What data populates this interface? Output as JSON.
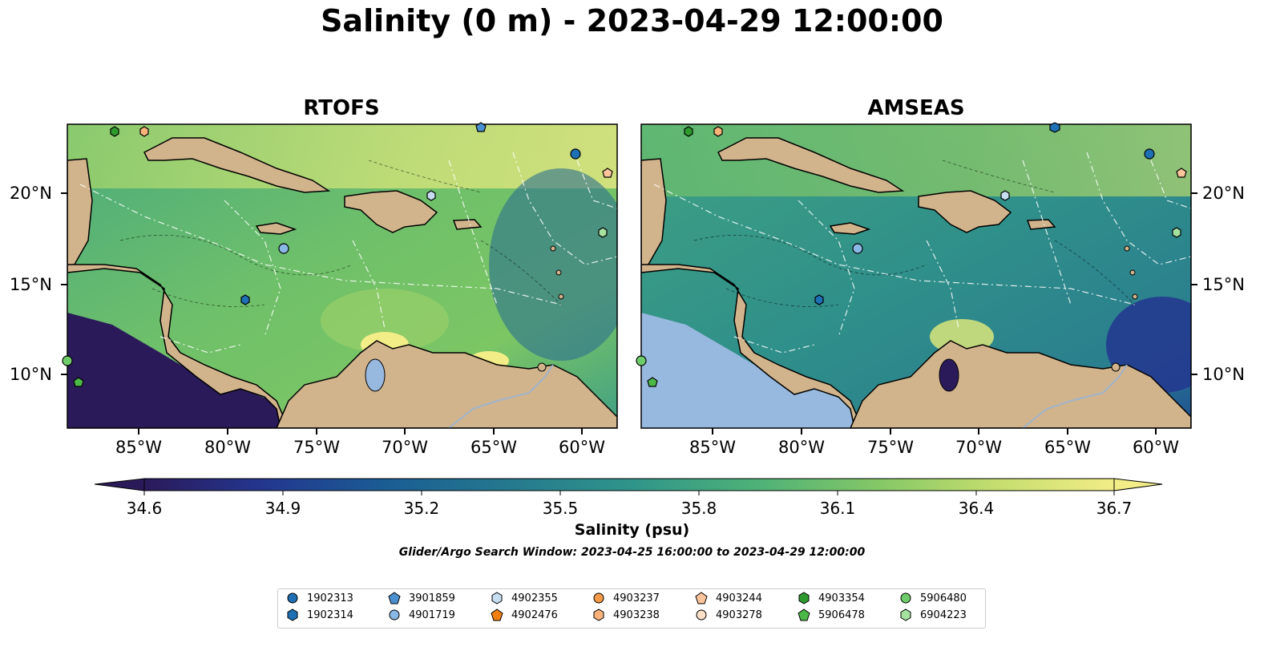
{
  "title": "Salinity (0 m) - 2023-04-29 12:00:00",
  "panels": [
    {
      "title": "RTOFS"
    },
    {
      "title": "AMSEAS"
    }
  ],
  "lat_labels": [
    "20°N",
    "15°N",
    "10°N"
  ],
  "lon_labels": [
    "85°W",
    "80°W",
    "75°W",
    "70°W",
    "65°W",
    "60°W"
  ],
  "colorbar": {
    "label": "Salinity (psu)",
    "ticks": [
      "34.6",
      "34.9",
      "35.2",
      "35.5",
      "35.8",
      "36.1",
      "36.4",
      "36.7"
    ],
    "range": [
      34.6,
      36.7
    ],
    "colormap": [
      "#2b1a5a",
      "#23368f",
      "#1a5d94",
      "#257a8e",
      "#2f948a",
      "#4db178",
      "#86c866",
      "#c6de6f",
      "#f2ed86"
    ]
  },
  "search_window": "Glider/Argo Search Window: 2023-04-25 16:00:00 to 2023-04-29 12:00:00",
  "legend": [
    {
      "id": "1902313",
      "marker": "circle",
      "color": "#1f6fb4"
    },
    {
      "id": "1902314",
      "marker": "hexagon",
      "color": "#1f6fb4"
    },
    {
      "id": "3901859",
      "marker": "pentagon",
      "color": "#4a90d0"
    },
    {
      "id": "4901719",
      "marker": "circle",
      "color": "#8ab8e6"
    },
    {
      "id": "4902355",
      "marker": "hexagon",
      "color": "#c6ddf2"
    },
    {
      "id": "4902476",
      "marker": "pentagon",
      "color": "#f07f12"
    },
    {
      "id": "4903237",
      "marker": "circle",
      "color": "#f59a46"
    },
    {
      "id": "4903238",
      "marker": "hexagon",
      "color": "#f9b27a"
    },
    {
      "id": "4903244",
      "marker": "pentagon",
      "color": "#fbc49b"
    },
    {
      "id": "4903278",
      "marker": "circle",
      "color": "#fde0c8"
    },
    {
      "id": "4903354",
      "marker": "hexagon",
      "color": "#2e9a2e"
    },
    {
      "id": "5906478",
      "marker": "pentagon",
      "color": "#4cb848"
    },
    {
      "id": "5906480",
      "marker": "circle",
      "color": "#6fcc6a"
    },
    {
      "id": "6904223",
      "marker": "hexagon",
      "color": "#a5e29f"
    }
  ]
}
